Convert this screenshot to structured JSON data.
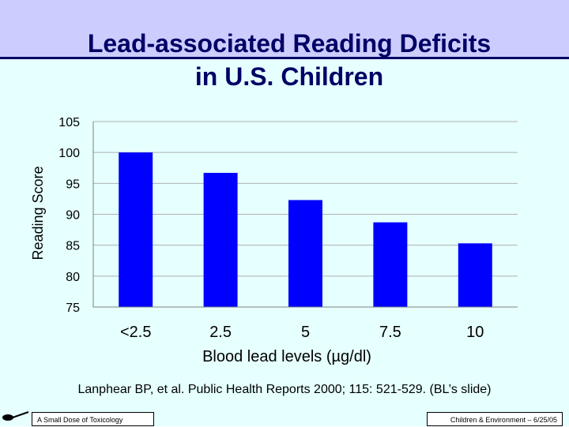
{
  "slide": {
    "title_line1": "Lead-associated Reading Deficits",
    "title_line2": "in U.S. Children",
    "citation": "Lanphear BP, et al. Public Health Reports 2000; 115: 521-529. (BL’s slide)",
    "footer_left": "A Small Dose of Toxicology",
    "footer_right": "Children & Environment – 6/25/05",
    "colors": {
      "header_band": "#ccccff",
      "title_text": "#000066",
      "content_background": "#e6ffff",
      "bar_fill": "#0000ff"
    },
    "icons": {
      "footer_logo": "spoon-icon"
    }
  },
  "chart_data": {
    "type": "bar",
    "categories": [
      "<2.5",
      "2.5",
      "5",
      "7.5",
      "10"
    ],
    "values": [
      100,
      96.7,
      92.3,
      88.7,
      85.3
    ],
    "xlabel": "Blood lead levels (µg/dl)",
    "ylabel": "Reading Score",
    "ylim": [
      75,
      105
    ],
    "yticks": [
      "105",
      "100",
      "95",
      "90",
      "85",
      "80",
      "75"
    ],
    "grid": true
  }
}
